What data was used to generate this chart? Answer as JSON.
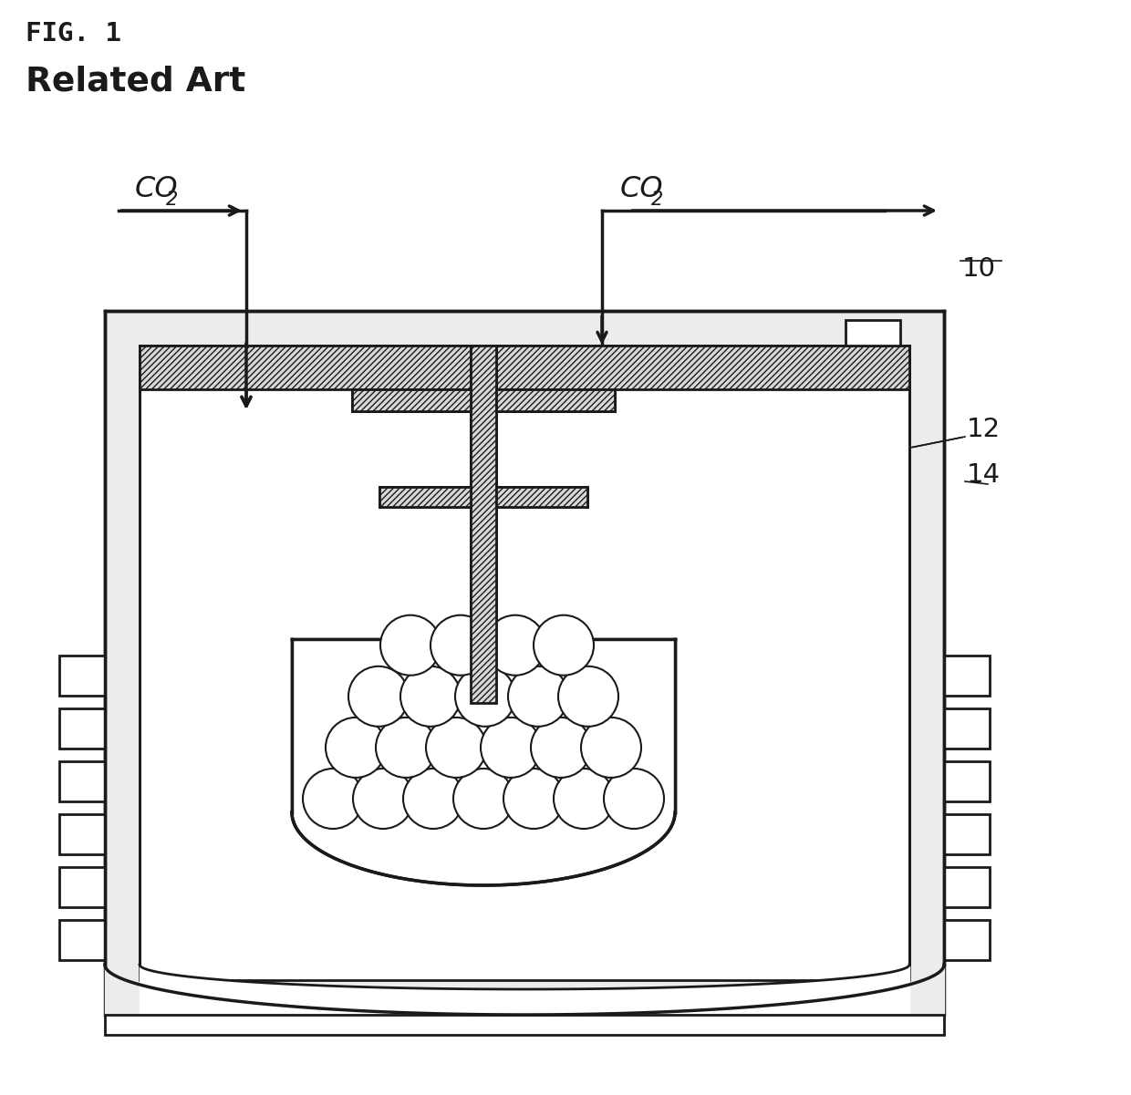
{
  "title": "FIG. 1",
  "subtitle": "Related Art",
  "label_10": "10",
  "label_12": "12",
  "label_14": "14",
  "co2_in": "CO",
  "co2_in_sub": "2",
  "co2_out": "CO",
  "co2_out_sub": "2",
  "bg_color": "#ffffff",
  "line_color": "#1a1a1a",
  "gray_fill": "#d8d8d8",
  "light_gray": "#ececec"
}
